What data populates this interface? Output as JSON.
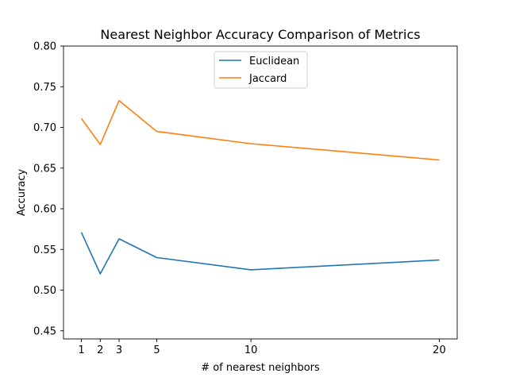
{
  "chart_data": {
    "type": "line",
    "title": "Nearest Neighbor Accuracy Comparison of Metrics",
    "xlabel": "# of nearest neighbors",
    "ylabel": "Accuracy",
    "x": [
      1,
      2,
      3,
      5,
      10,
      20
    ],
    "x_ticks": [
      "1",
      "2",
      "3",
      "5",
      "10",
      "20"
    ],
    "y_ticks": [
      "0.45",
      "0.50",
      "0.55",
      "0.60",
      "0.65",
      "0.70",
      "0.75",
      "0.80"
    ],
    "xlim": [
      0.05,
      20.95
    ],
    "ylim": [
      0.44,
      0.8
    ],
    "grid": false,
    "legend_position": "upper center",
    "series": [
      {
        "name": "Euclidean",
        "color": "#1f77b4",
        "values": [
          0.571,
          0.52,
          0.563,
          0.54,
          0.525,
          0.537
        ]
      },
      {
        "name": "Jaccard",
        "color": "#ff7f0e",
        "values": [
          0.711,
          0.679,
          0.733,
          0.695,
          0.68,
          0.66
        ]
      }
    ]
  }
}
